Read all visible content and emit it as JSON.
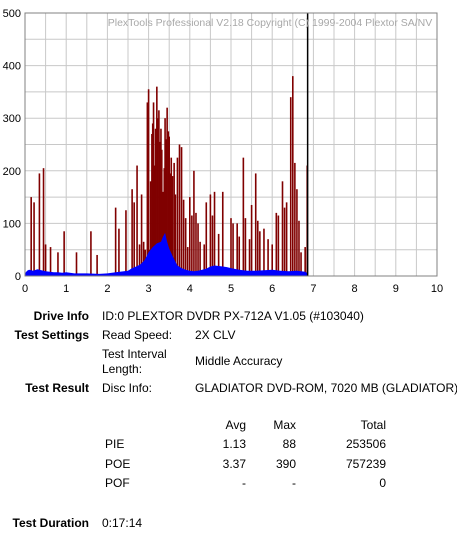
{
  "chart_data": {
    "type": "bar",
    "title": "PlexTools Professional V2.18 Copyright (C) 1999-2004 Plextor SA/NV",
    "xlim": [
      0,
      10
    ],
    "ylim": [
      0,
      500
    ],
    "x_ticks": [
      "0",
      "1",
      "2",
      "3",
      "4",
      "5",
      "6",
      "7",
      "8",
      "9",
      "10"
    ],
    "y_ticks": [
      "0",
      "100",
      "200",
      "300",
      "400",
      "500"
    ],
    "grid": true,
    "colors": {
      "poe": "#800000",
      "pie": "#0000ff",
      "marker": "#000000",
      "grid": "#c8c8c8"
    },
    "end_marker_x": 6.86,
    "series": [
      {
        "key": "poe",
        "points": [
          [
            0.15,
            150
          ],
          [
            0.22,
            140
          ],
          [
            0.35,
            195
          ],
          [
            0.45,
            205
          ],
          [
            0.5,
            60
          ],
          [
            0.62,
            55
          ],
          [
            0.8,
            45
          ],
          [
            0.95,
            85
          ],
          [
            1.25,
            45
          ],
          [
            1.6,
            85
          ],
          [
            1.75,
            40
          ],
          [
            2.2,
            130
          ],
          [
            2.28,
            90
          ],
          [
            2.45,
            125
          ],
          [
            2.6,
            165
          ],
          [
            2.65,
            140
          ],
          [
            2.72,
            210
          ],
          [
            2.78,
            60
          ],
          [
            2.83,
            155
          ],
          [
            2.88,
            65
          ],
          [
            2.92,
            50
          ],
          [
            2.97,
            330
          ],
          [
            3.0,
            355
          ],
          [
            3.02,
            50
          ],
          [
            3.05,
            180
          ],
          [
            3.08,
            270
          ],
          [
            3.1,
            290
          ],
          [
            3.12,
            330
          ],
          [
            3.14,
            210
          ],
          [
            3.17,
            280
          ],
          [
            3.2,
            360
          ],
          [
            3.22,
            300
          ],
          [
            3.25,
            315
          ],
          [
            3.28,
            255
          ],
          [
            3.3,
            280
          ],
          [
            3.32,
            240
          ],
          [
            3.35,
            160
          ],
          [
            3.38,
            205
          ],
          [
            3.4,
            300
          ],
          [
            3.43,
            260
          ],
          [
            3.45,
            320
          ],
          [
            3.48,
            275
          ],
          [
            3.5,
            265
          ],
          [
            3.52,
            195
          ],
          [
            3.55,
            225
          ],
          [
            3.58,
            190
          ],
          [
            3.62,
            215
          ],
          [
            3.65,
            155
          ],
          [
            3.7,
            225
          ],
          [
            3.75,
            250
          ],
          [
            3.8,
            245
          ],
          [
            3.85,
            145
          ],
          [
            3.9,
            110
          ],
          [
            3.95,
            55
          ],
          [
            4.0,
            150
          ],
          [
            4.05,
            115
          ],
          [
            4.1,
            200
          ],
          [
            4.15,
            120
          ],
          [
            4.2,
            100
          ],
          [
            4.25,
            65
          ],
          [
            4.35,
            60
          ],
          [
            4.4,
            140
          ],
          [
            4.5,
            155
          ],
          [
            4.55,
            115
          ],
          [
            4.6,
            160
          ],
          [
            4.7,
            80
          ],
          [
            4.8,
            160
          ],
          [
            5.0,
            110
          ],
          [
            5.05,
            100
          ],
          [
            5.15,
            100
          ],
          [
            5.2,
            75
          ],
          [
            5.3,
            225
          ],
          [
            5.35,
            110
          ],
          [
            5.45,
            70
          ],
          [
            5.5,
            135
          ],
          [
            5.6,
            195
          ],
          [
            5.65,
            105
          ],
          [
            5.7,
            85
          ],
          [
            5.8,
            90
          ],
          [
            5.9,
            70
          ],
          [
            6.0,
            60
          ],
          [
            6.1,
            120
          ],
          [
            6.15,
            115
          ],
          [
            6.25,
            180
          ],
          [
            6.3,
            130
          ],
          [
            6.35,
            140
          ],
          [
            6.45,
            340
          ],
          [
            6.5,
            380
          ],
          [
            6.55,
            215
          ],
          [
            6.6,
            165
          ],
          [
            6.65,
            105
          ],
          [
            6.7,
            45
          ],
          [
            6.8,
            55
          ],
          [
            6.85,
            210
          ]
        ]
      },
      {
        "key": "pie",
        "points": [
          [
            0.0,
            5
          ],
          [
            0.05,
            10
          ],
          [
            0.1,
            12
          ],
          [
            0.2,
            10
          ],
          [
            0.3,
            13
          ],
          [
            0.4,
            11
          ],
          [
            0.5,
            9
          ],
          [
            0.6,
            8
          ],
          [
            0.7,
            7
          ],
          [
            0.8,
            7
          ],
          [
            0.9,
            6
          ],
          [
            1.0,
            7
          ],
          [
            1.2,
            5
          ],
          [
            1.5,
            5
          ],
          [
            1.8,
            4
          ],
          [
            2.0,
            5
          ],
          [
            2.2,
            7
          ],
          [
            2.4,
            9
          ],
          [
            2.5,
            10
          ],
          [
            2.6,
            15
          ],
          [
            2.7,
            18
          ],
          [
            2.8,
            22
          ],
          [
            2.9,
            30
          ],
          [
            3.0,
            45
          ],
          [
            3.1,
            55
          ],
          [
            3.2,
            62
          ],
          [
            3.3,
            65
          ],
          [
            3.35,
            75
          ],
          [
            3.4,
            82
          ],
          [
            3.45,
            65
          ],
          [
            3.5,
            52
          ],
          [
            3.6,
            35
          ],
          [
            3.7,
            20
          ],
          [
            3.8,
            15
          ],
          [
            3.9,
            12
          ],
          [
            4.0,
            10
          ],
          [
            4.1,
            9
          ],
          [
            4.2,
            10
          ],
          [
            4.3,
            12
          ],
          [
            4.4,
            14
          ],
          [
            4.5,
            18
          ],
          [
            4.6,
            20
          ],
          [
            4.7,
            19
          ],
          [
            4.8,
            18
          ],
          [
            4.9,
            17
          ],
          [
            5.0,
            15
          ],
          [
            5.2,
            12
          ],
          [
            5.4,
            10
          ],
          [
            5.6,
            10
          ],
          [
            5.8,
            11
          ],
          [
            6.0,
            12
          ],
          [
            6.2,
            10
          ],
          [
            6.4,
            9
          ],
          [
            6.6,
            10
          ],
          [
            6.8,
            8
          ],
          [
            6.86,
            5
          ]
        ]
      }
    ]
  },
  "drive_info": {
    "label": "Drive Info",
    "value": "ID:0 PLEXTOR DVDR PX-712A V1.05 (#103040)"
  },
  "test_settings": {
    "label": "Test Settings",
    "read_speed_label": "Read Speed:",
    "read_speed_value": "2X CLV",
    "interval_label_1": "Test Interval",
    "interval_label_2": "Length:",
    "interval_value": "Middle Accuracy"
  },
  "test_result": {
    "label": "Test Result",
    "disc_info_label": "Disc Info:",
    "disc_info_value": "GLADIATOR DVD-ROM, 7020 MB (GLADIATOR)",
    "headers": {
      "avg": "Avg",
      "max": "Max",
      "total": "Total"
    },
    "rows": [
      {
        "name": "PIE",
        "avg": "1.13",
        "max": "88",
        "total": "253506"
      },
      {
        "name": "POE",
        "avg": "3.37",
        "max": "390",
        "total": "757239"
      },
      {
        "name": "POF",
        "avg": "-",
        "max": "-",
        "total": "0"
      }
    ]
  },
  "test_duration": {
    "label": "Test Duration",
    "value": "0:17:14"
  }
}
